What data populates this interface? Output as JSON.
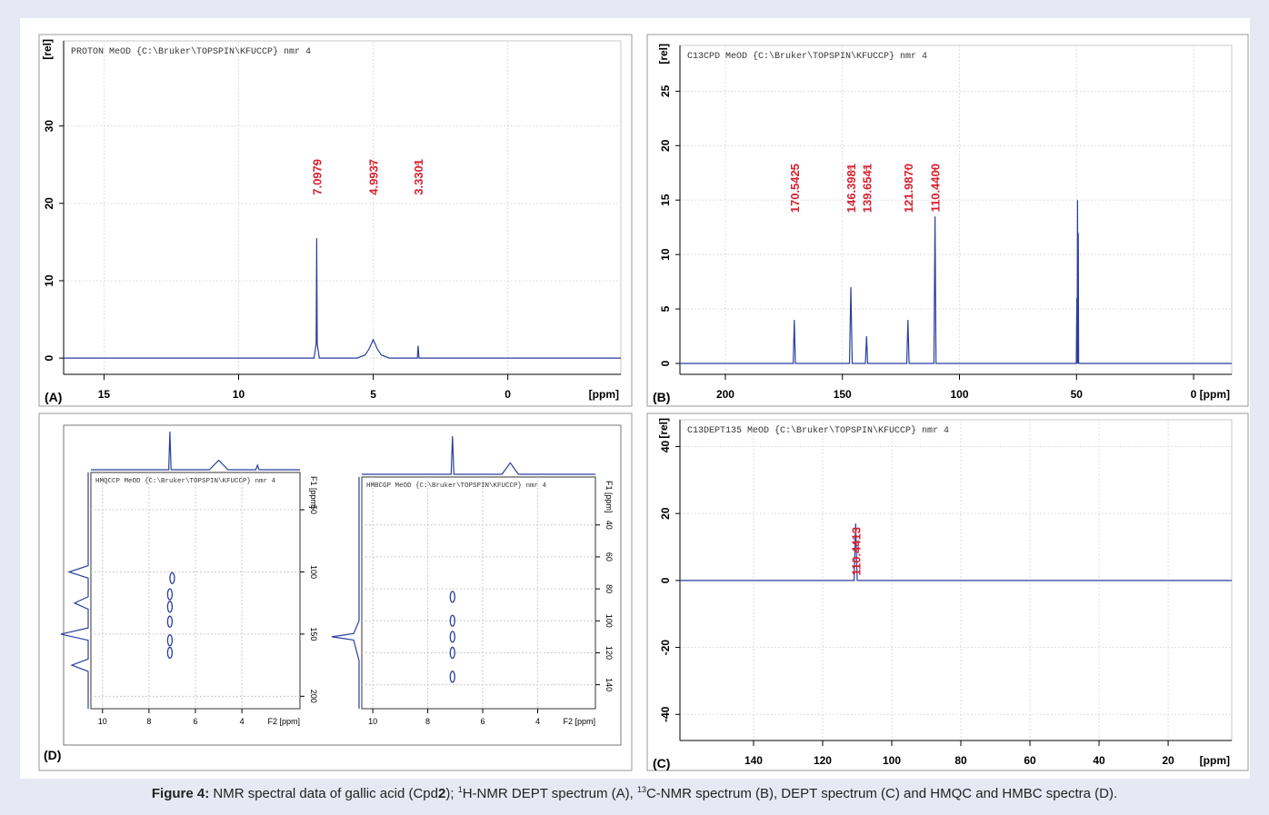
{
  "chart_data": [
    {
      "type": "line",
      "panel": "(A)",
      "title": "PROTON MeOD {C:\\Bruker\\TOPSPIN\\KFUCCP} nmr 4",
      "y_label": "[rel]",
      "x_label": "[ppm]",
      "color": "#2a3f9e",
      "x": [
        16.5,
        7.2,
        7.12,
        7.1,
        7.08,
        7.0,
        5.6,
        5.3,
        5.15,
        5.0,
        4.85,
        4.7,
        4.4,
        3.36,
        3.33,
        3.3,
        -4.2
      ],
      "values": [
        0,
        0,
        1.8,
        15.5,
        1.8,
        0,
        0,
        0.4,
        1.2,
        2.4,
        1.2,
        0.4,
        0,
        0,
        1.6,
        0,
        0
      ],
      "xlim": [
        16.5,
        -4.2
      ],
      "ylim": [
        -2.1,
        41
      ],
      "xticks": [
        15,
        10,
        5,
        0
      ],
      "yticks": [
        0,
        10,
        20,
        30
      ],
      "grid": true,
      "annotations": [
        {
          "x": 7.0979,
          "label": "7.0979"
        },
        {
          "x": 4.9937,
          "label": "4.9937"
        },
        {
          "x": 3.3301,
          "label": "3.3301"
        }
      ]
    },
    {
      "type": "line",
      "panel": "(B)",
      "title": "C13CPD MeOD {C:\\Bruker\\TOPSPIN\\KFUCCP} nmr 4",
      "y_label": "[rel]",
      "x_label": "[ppm]",
      "color": "#2a3f9e",
      "x": [
        219.4,
        171,
        170.55,
        170.1,
        147,
        146.4,
        145.8,
        140.2,
        139.7,
        139.2,
        122.5,
        122,
        121.5,
        110.9,
        110.44,
        110,
        50.1,
        49.85,
        49.7,
        49.55,
        49.4,
        49.25,
        49.1,
        -16.3
      ],
      "values": [
        0,
        0,
        4,
        0,
        0,
        7,
        0,
        0,
        2.5,
        0,
        0,
        4,
        0,
        0,
        13.5,
        0,
        0,
        6,
        0,
        15,
        0,
        12,
        0,
        0
      ],
      "xlim": [
        219.4,
        -16.3
      ],
      "ylim": [
        -1,
        29.2
      ],
      "xticks": [
        200,
        150,
        100,
        50,
        0
      ],
      "yticks": [
        0,
        5,
        10,
        15,
        20,
        25
      ],
      "grid": true,
      "annotations": [
        {
          "x": 170.5425,
          "label": "170.5425"
        },
        {
          "x": 146.3981,
          "label": "146.3981"
        },
        {
          "x": 139.6541,
          "label": "139.6541"
        },
        {
          "x": 121.987,
          "label": "121.9870"
        },
        {
          "x": 110.44,
          "label": "110.4400"
        }
      ]
    },
    {
      "type": "line",
      "panel": "(C)",
      "title": "C13DEPT135 MeOD {C:\\Bruker\\TOPSPIN\\KFUCCP} nmr 4",
      "y_label": "[rel]",
      "x_label": "[ppm]",
      "color": "#2a3f9e",
      "x": [
        161.3,
        110.9,
        110.44,
        110,
        1.6
      ],
      "values": [
        0,
        0,
        17,
        0,
        0
      ],
      "xlim": [
        161.3,
        1.6
      ],
      "ylim": [
        -47.8,
        48
      ],
      "xticks": [
        140,
        120,
        100,
        80,
        60,
        40,
        20
      ],
      "yticks": [
        40,
        20,
        0,
        -20,
        -40
      ],
      "grid": true,
      "annotations": [
        {
          "x": 110.4413,
          "label": "110.4413"
        }
      ]
    },
    {
      "type": "contour",
      "panel": "(D)",
      "title": "HMQCCP MeOD {C:\\Bruker\\TOPSPIN\\KFUCCP} nmr 4",
      "x_label": "F2 [ppm]",
      "y_label": "F1 [ppm]",
      "color": "#2a3f9e",
      "xlim": [
        10.5,
        1.5
      ],
      "ylim": [
        20,
        210
      ],
      "xticks": [
        10,
        8,
        6,
        4
      ],
      "yticks": [
        50,
        100,
        150,
        200
      ],
      "grid": true,
      "x": [
        7.0,
        7.1,
        7.1,
        7.1,
        7.1,
        7.1
      ],
      "y": [
        105,
        118,
        128,
        140,
        155,
        165
      ],
      "f2_projection": {
        "x": [
          10.5,
          7.15,
          7.1,
          7.05,
          5.4,
          5.0,
          4.6,
          3.4,
          3.33,
          3.26,
          1.5
        ],
        "values": [
          0,
          0,
          1,
          0,
          0,
          0.25,
          0,
          0,
          0.12,
          0,
          0
        ]
      },
      "f1_projection": {
        "y": [
          20,
          95,
          100,
          105,
          120,
          125,
          130,
          145,
          150,
          155,
          170,
          175,
          180,
          210
        ],
        "values": [
          0,
          0,
          0.7,
          0,
          0,
          0.5,
          0,
          0,
          1,
          0,
          0,
          0.6,
          0,
          0
        ]
      }
    },
    {
      "type": "contour",
      "title": "HMBCGP MeOD {C:\\Bruker\\TOPSPIN\\KFUCCP} nmr 4",
      "x_label": "F2 [ppm]",
      "y_label": "F1 [ppm]",
      "color": "#2a3f9e",
      "xlim": [
        10.4,
        1.9
      ],
      "ylim": [
        10,
        155
      ],
      "xticks": [
        10,
        8,
        6,
        4
      ],
      "yticks": [
        40,
        60,
        80,
        100,
        120,
        140
      ],
      "grid": true,
      "x": [
        7.1,
        7.1,
        7.1,
        7.1,
        7.1
      ],
      "y": [
        85,
        100,
        110,
        120,
        135
      ],
      "f2_projection": {
        "x": [
          10.4,
          7.15,
          7.1,
          7.05,
          5.3,
          5.0,
          4.7,
          1.9
        ],
        "values": [
          0,
          0,
          1,
          0,
          0,
          0.3,
          0,
          0
        ]
      },
      "f1_projection": {
        "y": [
          10,
          100,
          108,
          110,
          112,
          125,
          155
        ],
        "values": [
          0,
          0,
          0.2,
          1,
          0.2,
          0,
          0
        ]
      }
    }
  ],
  "caption": {
    "label": "Figure 4:",
    "parts": [
      "NMR spectral data of gallic acid (Cpd",
      "2",
      "); ",
      "1",
      "H-NMR DEPT spectrum (A), ",
      "13",
      "C-NMR spectrum (B), DEPT spectrum (C) and HMQC and HMBC spectra (D)."
    ]
  }
}
